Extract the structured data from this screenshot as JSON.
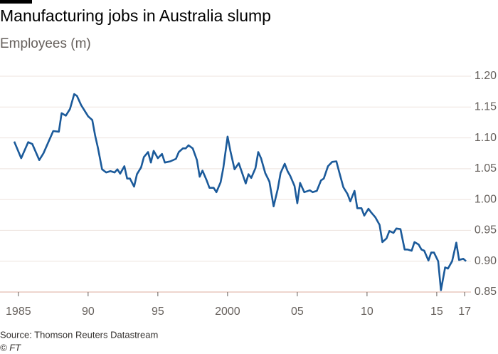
{
  "chart_data": {
    "type": "line",
    "title": "Manufacturing jobs in Australia slump",
    "subtitle": "Employees (m)",
    "source": "Source: Thomson Reuters Datastream",
    "credit": "© FT",
    "x": [
      1984.7,
      1985.2,
      1985.7,
      1986.0,
      1986.5,
      1986.8,
      1987.5,
      1987.9,
      1988.1,
      1988.4,
      1988.7,
      1989.0,
      1989.2,
      1989.5,
      1990.0,
      1990.3,
      1990.5,
      1990.7,
      1991.0,
      1991.3,
      1991.6,
      1991.9,
      1992.1,
      1992.3,
      1992.6,
      1992.8,
      1993.0,
      1993.3,
      1993.5,
      1993.8,
      1994.0,
      1994.3,
      1994.5,
      1994.7,
      1995.0,
      1995.3,
      1995.5,
      1995.9,
      1996.3,
      1996.5,
      1996.8,
      1997.0,
      1997.2,
      1997.5,
      1997.8,
      1998.0,
      1998.2,
      1998.5,
      1998.7,
      1999.0,
      1999.2,
      1999.5,
      1999.7,
      2000.0,
      2000.2,
      2000.5,
      2000.8,
      2001.0,
      2001.3,
      2001.5,
      2001.7,
      2002.0,
      2002.2,
      2002.4,
      2002.7,
      2003.0,
      2003.3,
      2003.6,
      2003.8,
      2004.1,
      2004.3,
      2004.5,
      2004.8,
      2005.0,
      2005.2,
      2005.5,
      2005.9,
      2006.1,
      2006.4,
      2006.7,
      2006.9,
      2007.2,
      2007.5,
      2007.8,
      2008.0,
      2008.3,
      2008.6,
      2008.8,
      2009.1,
      2009.3,
      2009.6,
      2009.8,
      2010.1,
      2010.3,
      2010.6,
      2010.9,
      2011.1,
      2011.4,
      2011.6,
      2011.9,
      2012.1,
      2012.4,
      2012.7,
      2012.9,
      2013.2,
      2013.4,
      2013.7,
      2013.9,
      2014.1,
      2014.4,
      2014.6,
      2014.8,
      2015.1,
      2015.3,
      2015.6,
      2015.8,
      2016.1,
      2016.4,
      2016.6,
      2016.9,
      2017.1
    ],
    "series": [
      {
        "name": "Employees",
        "color": "#1b5a9a",
        "values": [
          1.094,
          1.067,
          1.093,
          1.09,
          1.064,
          1.075,
          1.111,
          1.11,
          1.14,
          1.136,
          1.147,
          1.171,
          1.168,
          1.153,
          1.135,
          1.129,
          1.104,
          1.084,
          1.049,
          1.044,
          1.046,
          1.044,
          1.049,
          1.042,
          1.054,
          1.034,
          1.034,
          1.021,
          1.041,
          1.052,
          1.069,
          1.077,
          1.06,
          1.079,
          1.067,
          1.074,
          1.06,
          1.062,
          1.066,
          1.077,
          1.083,
          1.083,
          1.088,
          1.083,
          1.064,
          1.037,
          1.047,
          1.031,
          1.019,
          1.019,
          1.012,
          1.028,
          1.052,
          1.102,
          1.079,
          1.049,
          1.059,
          1.046,
          1.026,
          1.041,
          1.035,
          1.051,
          1.077,
          1.067,
          1.043,
          1.029,
          0.989,
          1.017,
          1.043,
          1.058,
          1.046,
          1.038,
          1.022,
          0.994,
          1.027,
          1.012,
          1.015,
          1.012,
          1.014,
          1.031,
          1.034,
          1.054,
          1.061,
          1.062,
          1.045,
          1.02,
          1.009,
          0.997,
          1.014,
          0.986,
          0.986,
          0.974,
          0.985,
          0.979,
          0.971,
          0.959,
          0.931,
          0.937,
          0.949,
          0.946,
          0.953,
          0.952,
          0.919,
          0.919,
          0.917,
          0.931,
          0.927,
          0.919,
          0.917,
          0.901,
          0.914,
          0.914,
          0.9,
          0.853,
          0.89,
          0.888,
          0.9,
          0.93,
          0.902,
          0.904,
          0.9
        ]
      }
    ],
    "xlim": [
      1984.6,
      2017.3
    ],
    "xticks": [
      1985,
      {
        "value": 1990,
        "label": "90"
      },
      {
        "value": 1995,
        "label": "95"
      },
      2000,
      {
        "value": 2005,
        "label": "05"
      },
      {
        "value": 2010,
        "label": "10"
      },
      {
        "value": 2015,
        "label": "15"
      },
      {
        "value": 2017,
        "label": "17"
      }
    ],
    "ylim": [
      0.85,
      1.2
    ],
    "yticks": [
      0.85,
      {
        "value": 0.9,
        "label": "0.90"
      },
      0.95,
      {
        "value": 1.0,
        "label": "1.00"
      },
      1.05,
      {
        "value": 1.1,
        "label": "1.10"
      },
      1.15,
      {
        "value": 1.2,
        "label": "1.20"
      }
    ],
    "grid": true
  }
}
